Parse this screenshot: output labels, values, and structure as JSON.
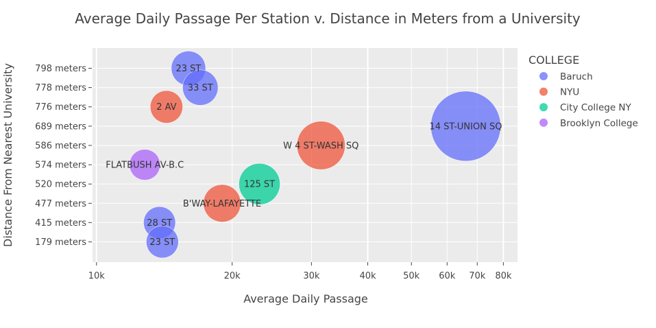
{
  "chart_data": {
    "type": "scatter",
    "title": "Average Daily Passage Per Station v. Distance in Meters from a University",
    "xlabel": "Average Daily Passage",
    "ylabel": "Distance From Nearest University",
    "x_scale": "log",
    "xlim": [
      9800,
      86000
    ],
    "x_ticks": [
      {
        "value": 10000,
        "label": "10k"
      },
      {
        "value": 20000,
        "label": "20k"
      },
      {
        "value": 30000,
        "label": "30k"
      },
      {
        "value": 40000,
        "label": "40k"
      },
      {
        "value": 50000,
        "label": "50k"
      },
      {
        "value": 60000,
        "label": "60k"
      },
      {
        "value": 70000,
        "label": "70k"
      },
      {
        "value": 80000,
        "label": "80k"
      }
    ],
    "y_categories": [
      "179 meters",
      "415 meters",
      "477 meters",
      "520 meters",
      "574 meters",
      "586 meters",
      "689 meters",
      "776 meters",
      "778 meters",
      "798 meters"
    ],
    "grid": true,
    "legend": {
      "title": "COLLEGE",
      "placement": "right",
      "entries": [
        {
          "name": "Baruch",
          "color": "#636efa"
        },
        {
          "name": "NYU",
          "color": "#ef553b"
        },
        {
          "name": "City College NY",
          "color": "#00cc96"
        },
        {
          "name": "Brooklyn College",
          "color": "#ab63fa"
        }
      ]
    },
    "points": [
      {
        "label": "23 ST",
        "x": 16000,
        "y": "798 meters",
        "college": "Baruch",
        "size": 16000
      },
      {
        "label": "33 ST",
        "x": 17000,
        "y": "778 meters",
        "college": "Baruch",
        "size": 17000
      },
      {
        "label": "2 AV",
        "x": 14300,
        "y": "776 meters",
        "college": "NYU",
        "size": 14300
      },
      {
        "label": "14 ST-UNION SQ",
        "x": 66000,
        "y": "689 meters",
        "college": "Baruch",
        "size": 66000
      },
      {
        "label": "W 4 ST-WASH SQ",
        "x": 31500,
        "y": "586 meters",
        "college": "NYU",
        "size": 31500
      },
      {
        "label": "FLATBUSH AV-B.C",
        "x": 12800,
        "y": "574 meters",
        "college": "Brooklyn College",
        "size": 12800
      },
      {
        "label": "125 ST",
        "x": 23000,
        "y": "520 meters",
        "college": "City College NY",
        "size": 23000
      },
      {
        "label": "B'WAY-LAFAYETTE",
        "x": 19000,
        "y": "477 meters",
        "college": "NYU",
        "size": 19000
      },
      {
        "label": "28 ST",
        "x": 13800,
        "y": "415 meters",
        "college": "Baruch",
        "size": 13800
      },
      {
        "label": "23 ST",
        "x": 14000,
        "y": "179 meters",
        "college": "Baruch",
        "size": 14000
      }
    ]
  }
}
